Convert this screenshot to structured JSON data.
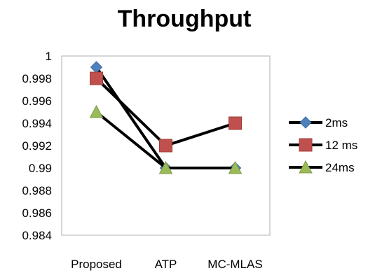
{
  "chart_data": {
    "type": "line",
    "title": "Throughput",
    "xlabel": "",
    "ylabel": "",
    "categories": [
      "Proposed",
      "ATP",
      "MC-MLAS"
    ],
    "ylim": [
      0.984,
      1
    ],
    "yticks": [
      "0.984",
      "0.986",
      "0.988",
      "0.99",
      "0.992",
      "0.994",
      "0.996",
      "0.998",
      "1"
    ],
    "grid": false,
    "legend_position": "right",
    "series": [
      {
        "name": "2ms",
        "values": [
          0.999,
          0.99,
          0.99
        ],
        "marker": "diamond",
        "color": "#4F81BD"
      },
      {
        "name": "12 ms",
        "values": [
          0.998,
          0.992,
          0.994
        ],
        "marker": "square",
        "color": "#C0504D"
      },
      {
        "name": "24ms",
        "values": [
          0.995,
          0.99,
          0.99
        ],
        "marker": "triangle",
        "color": "#9BBB59"
      }
    ],
    "line_color": "#000000"
  }
}
